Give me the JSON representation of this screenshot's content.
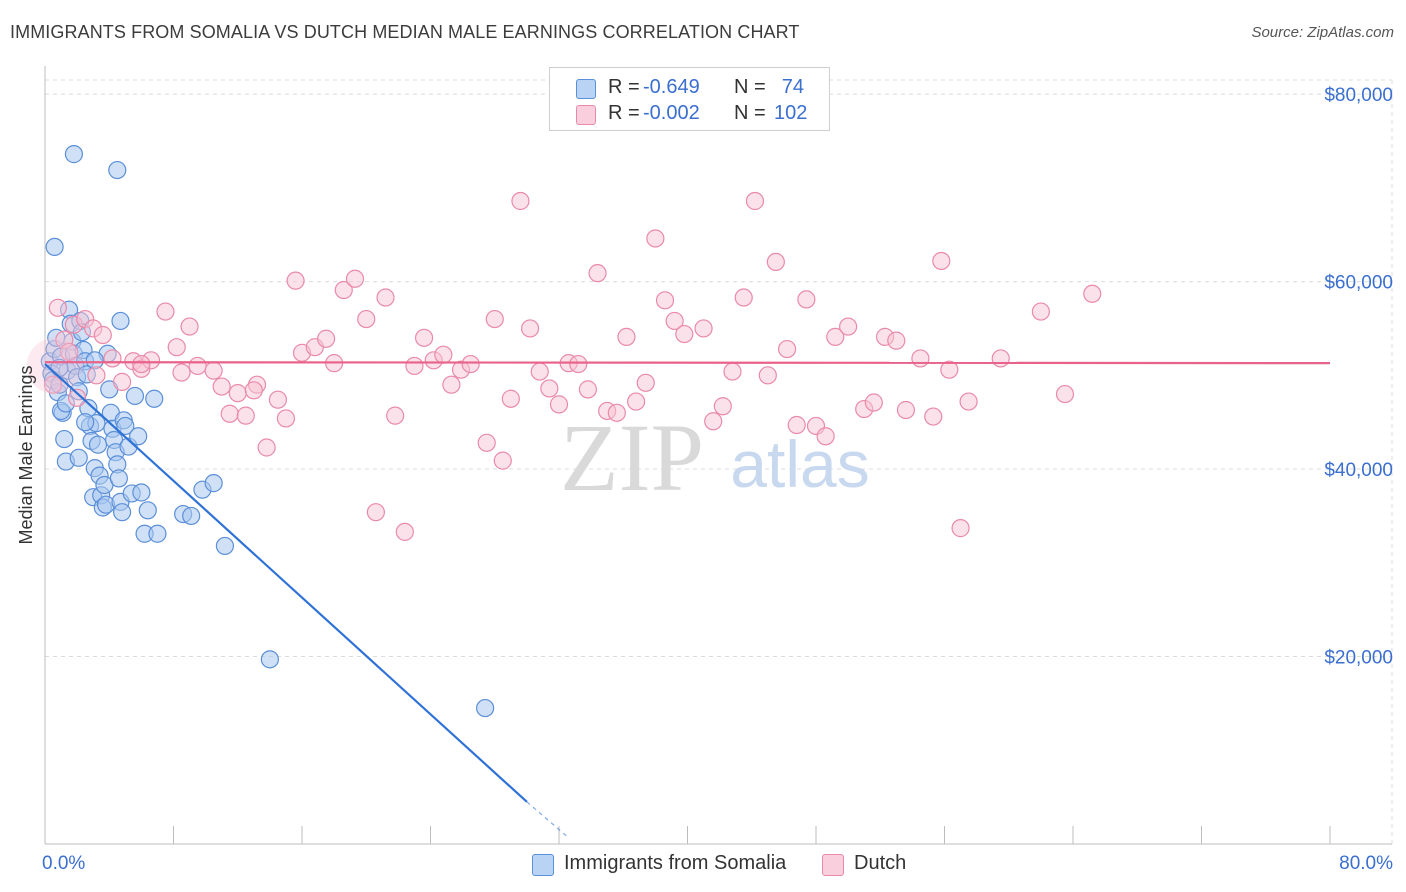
{
  "title": "IMMIGRANTS FROM SOMALIA VS DUTCH MEDIAN MALE EARNINGS CORRELATION CHART",
  "source": "Source: ZipAtlas.com",
  "watermark": {
    "zip": "ZIP",
    "atlas": "atlas"
  },
  "colors": {
    "blue_fill": "#a9c8f0",
    "blue_stroke": "#5b8fd8",
    "blue_line": "#2f72d6",
    "pink_fill": "#f7c3d4",
    "pink_stroke": "#e98aaa",
    "pink_line": "#e8628a",
    "axis_label": "#3a6fd0",
    "grid": "#dcdcdc"
  },
  "legend": {
    "rows": [
      {
        "r_label": "R =",
        "r_value": "-0.649",
        "n_label": "N =",
        "n_value": "74"
      },
      {
        "r_label": "R =",
        "r_value": "-0.002",
        "n_label": "N =",
        "n_value": "102"
      }
    ]
  },
  "bottom_legend": {
    "series1": "Immigrants from Somalia",
    "series2": "Dutch"
  },
  "chart_data": {
    "type": "scatter",
    "title": "IMMIGRANTS FROM SOMALIA VS DUTCH MEDIAN MALE EARNINGS CORRELATION CHART",
    "xlabel": "",
    "ylabel": "Median Male Earnings",
    "xlim": [
      0,
      80
    ],
    "ylim": [
      0,
      83000
    ],
    "x_tick_labels": [
      "0.0%",
      "80.0%"
    ],
    "y_ticks": [
      20000,
      40000,
      60000,
      80000
    ],
    "y_tick_labels": [
      "$20,000",
      "$40,000",
      "$60,000",
      "$80,000"
    ],
    "grid": true,
    "series": [
      {
        "name": "Immigrants from Somalia",
        "r": -0.649,
        "n": 74,
        "trend": {
          "x0": 0.0,
          "y0": 51200,
          "x1": 30.0,
          "y1": 4500,
          "dash_x1": 32.5,
          "dash_y1": 800
        },
        "points": [
          [
            0.3,
            51500
          ],
          [
            0.4,
            50200
          ],
          [
            0.5,
            49500
          ],
          [
            0.6,
            52800
          ],
          [
            0.7,
            54000
          ],
          [
            0.8,
            48200
          ],
          [
            0.9,
            49000
          ],
          [
            1.0,
            52000
          ],
          [
            1.1,
            46000
          ],
          [
            1.2,
            43200
          ],
          [
            1.3,
            40800
          ],
          [
            1.4,
            50500
          ],
          [
            1.5,
            57000
          ],
          [
            1.6,
            55500
          ],
          [
            1.7,
            53600
          ],
          [
            1.8,
            52300
          ],
          [
            1.9,
            51000
          ],
          [
            2.0,
            49800
          ],
          [
            2.1,
            48300
          ],
          [
            2.2,
            55800
          ],
          [
            2.3,
            54600
          ],
          [
            2.4,
            52700
          ],
          [
            2.5,
            51500
          ],
          [
            2.6,
            50100
          ],
          [
            2.7,
            46500
          ],
          [
            2.8,
            44600
          ],
          [
            2.9,
            43000
          ],
          [
            3.0,
            37000
          ],
          [
            3.1,
            40100
          ],
          [
            3.2,
            44900
          ],
          [
            3.3,
            42600
          ],
          [
            3.4,
            39300
          ],
          [
            3.5,
            37200
          ],
          [
            3.6,
            35900
          ],
          [
            3.7,
            38300
          ],
          [
            3.8,
            36200
          ],
          [
            3.9,
            52300
          ],
          [
            4.0,
            48500
          ],
          [
            4.1,
            46000
          ],
          [
            4.2,
            44300
          ],
          [
            4.3,
            43100
          ],
          [
            4.4,
            41800
          ],
          [
            4.5,
            40500
          ],
          [
            4.6,
            39000
          ],
          [
            4.7,
            36500
          ],
          [
            4.8,
            35400
          ],
          [
            4.9,
            45200
          ],
          [
            5.0,
            44600
          ],
          [
            5.2,
            42400
          ],
          [
            5.4,
            37400
          ],
          [
            5.6,
            47800
          ],
          [
            5.8,
            43500
          ],
          [
            6.0,
            37500
          ],
          [
            6.2,
            33100
          ],
          [
            6.4,
            35600
          ],
          [
            6.8,
            47500
          ],
          [
            7.0,
            33100
          ],
          [
            8.6,
            35200
          ],
          [
            9.1,
            35000
          ],
          [
            9.8,
            37800
          ],
          [
            10.5,
            38500
          ],
          [
            11.2,
            31800
          ],
          [
            14.0,
            19700
          ],
          [
            27.4,
            14500
          ],
          [
            1.8,
            73600
          ],
          [
            4.5,
            71900
          ],
          [
            0.6,
            63700
          ],
          [
            4.7,
            55800
          ],
          [
            1.0,
            46200
          ],
          [
            2.5,
            45000
          ],
          [
            0.9,
            50800
          ],
          [
            3.1,
            51600
          ],
          [
            1.3,
            47000
          ],
          [
            2.1,
            41200
          ]
        ]
      },
      {
        "name": "Dutch",
        "r": -0.002,
        "n": 102,
        "trend": {
          "x0": 0.0,
          "y0": 51400,
          "x1": 80.0,
          "y1": 51300
        },
        "points": [
          [
            0.8,
            57200
          ],
          [
            1.2,
            53800
          ],
          [
            1.8,
            55400
          ],
          [
            2.5,
            56000
          ],
          [
            3.0,
            55000
          ],
          [
            3.2,
            50000
          ],
          [
            3.6,
            54300
          ],
          [
            4.2,
            51800
          ],
          [
            4.8,
            49300
          ],
          [
            5.5,
            51500
          ],
          [
            6.0,
            50700
          ],
          [
            6.6,
            51600
          ],
          [
            7.5,
            56800
          ],
          [
            8.2,
            53000
          ],
          [
            8.5,
            50300
          ],
          [
            9.0,
            55200
          ],
          [
            9.5,
            51000
          ],
          [
            10.5,
            50500
          ],
          [
            11.0,
            48800
          ],
          [
            11.5,
            45900
          ],
          [
            12.0,
            48100
          ],
          [
            12.5,
            45700
          ],
          [
            13.2,
            49000
          ],
          [
            13.8,
            42300
          ],
          [
            14.5,
            47400
          ],
          [
            15.0,
            45400
          ],
          [
            15.6,
            60100
          ],
          [
            16.0,
            52400
          ],
          [
            16.8,
            53000
          ],
          [
            17.5,
            53900
          ],
          [
            18.0,
            51300
          ],
          [
            18.6,
            59100
          ],
          [
            19.3,
            60300
          ],
          [
            20.0,
            56000
          ],
          [
            20.6,
            35400
          ],
          [
            21.2,
            58300
          ],
          [
            21.8,
            45700
          ],
          [
            22.4,
            33300
          ],
          [
            23.0,
            51000
          ],
          [
            23.6,
            54000
          ],
          [
            24.2,
            51600
          ],
          [
            24.8,
            52200
          ],
          [
            25.3,
            49000
          ],
          [
            25.9,
            50600
          ],
          [
            26.5,
            51200
          ],
          [
            27.5,
            42800
          ],
          [
            28.0,
            56000
          ],
          [
            28.5,
            40900
          ],
          [
            29.0,
            47500
          ],
          [
            29.6,
            68600
          ],
          [
            30.2,
            55000
          ],
          [
            30.8,
            50400
          ],
          [
            31.4,
            48600
          ],
          [
            32.0,
            46900
          ],
          [
            32.6,
            51300
          ],
          [
            33.2,
            51200
          ],
          [
            33.8,
            48500
          ],
          [
            34.4,
            60900
          ],
          [
            35.0,
            46200
          ],
          [
            35.6,
            46000
          ],
          [
            36.2,
            54100
          ],
          [
            36.8,
            47200
          ],
          [
            37.4,
            49200
          ],
          [
            38.0,
            64600
          ],
          [
            38.6,
            58000
          ],
          [
            39.2,
            55800
          ],
          [
            39.8,
            54400
          ],
          [
            41.0,
            55000
          ],
          [
            41.6,
            45100
          ],
          [
            42.2,
            46700
          ],
          [
            42.8,
            50400
          ],
          [
            43.5,
            58300
          ],
          [
            44.2,
            68600
          ],
          [
            45.0,
            50000
          ],
          [
            45.5,
            62100
          ],
          [
            46.2,
            52800
          ],
          [
            46.8,
            44700
          ],
          [
            47.4,
            58100
          ],
          [
            48.0,
            44600
          ],
          [
            48.6,
            43500
          ],
          [
            49.2,
            54100
          ],
          [
            50.0,
            55200
          ],
          [
            51.0,
            46400
          ],
          [
            51.6,
            47100
          ],
          [
            52.3,
            54100
          ],
          [
            53.0,
            53700
          ],
          [
            53.6,
            46300
          ],
          [
            54.5,
            51800
          ],
          [
            55.3,
            45600
          ],
          [
            55.8,
            62200
          ],
          [
            56.3,
            50600
          ],
          [
            57.0,
            33700
          ],
          [
            57.5,
            47200
          ],
          [
            59.5,
            51800
          ],
          [
            62.0,
            56800
          ],
          [
            63.5,
            48000
          ],
          [
            65.2,
            58700
          ],
          [
            0.5,
            49000
          ],
          [
            1.5,
            52500
          ],
          [
            2.0,
            47600
          ],
          [
            6.0,
            51200
          ],
          [
            13.0,
            48400
          ]
        ]
      }
    ]
  }
}
